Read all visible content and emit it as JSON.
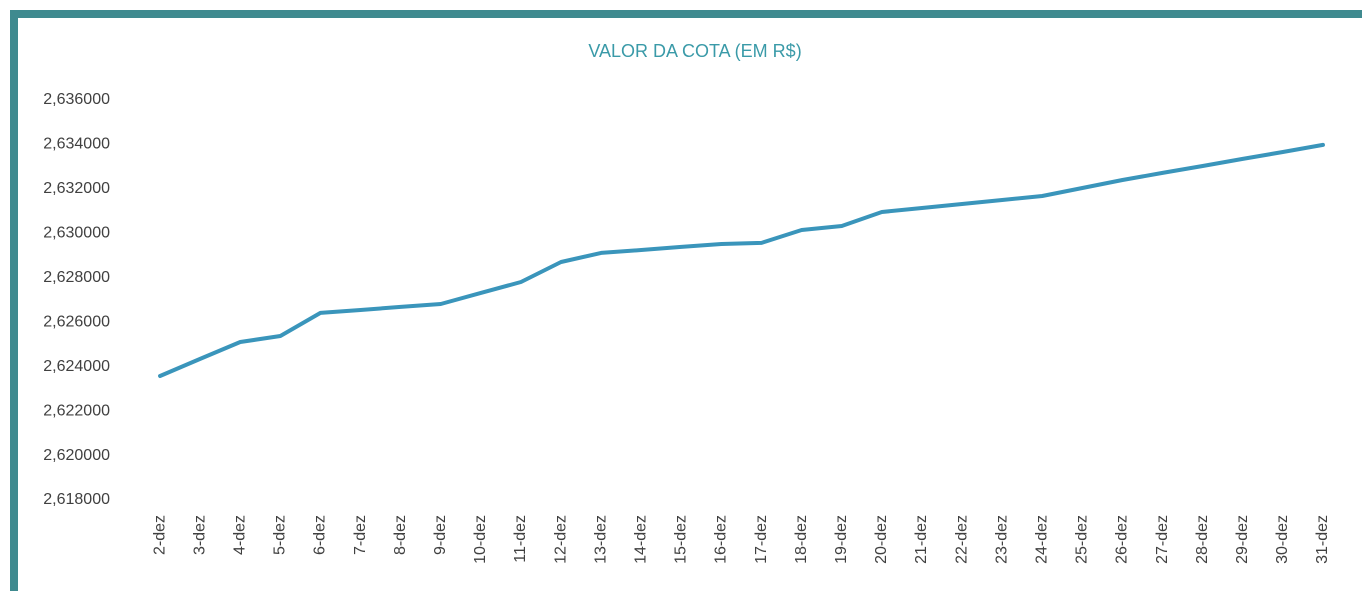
{
  "chart_data": {
    "type": "line",
    "title": "VALOR DA COTA (EM R$)",
    "categories": [
      "2-dez",
      "3-dez",
      "4-dez",
      "5-dez",
      "6-dez",
      "7-dez",
      "8-dez",
      "9-dez",
      "10-dez",
      "11-dez",
      "12-dez",
      "13-dez",
      "14-dez",
      "15-dez",
      "16-dez",
      "17-dez",
      "18-dez",
      "19-dez",
      "20-dez",
      "21-dez",
      "22-dez",
      "23-dez",
      "24-dez",
      "25-dez",
      "26-dez",
      "27-dez",
      "28-dez",
      "29-dez",
      "30-dez",
      "31-dez"
    ],
    "values": [
      2.62358,
      2.62435,
      2.62511,
      2.62538,
      2.62642,
      2.62655,
      2.62669,
      2.62682,
      2.62732,
      2.62781,
      2.62871,
      2.62912,
      2.62925,
      2.62939,
      2.62952,
      2.62957,
      2.63015,
      2.63033,
      2.63096,
      2.63114,
      2.63132,
      2.6315,
      2.63168,
      2.63204,
      2.6324,
      2.63272,
      2.63303,
      2.63335,
      2.63366,
      2.63398
    ],
    "color": "#3a95bb",
    "ylim": [
      2.618,
      2.636
    ],
    "yticks": [
      {
        "value": 2.618,
        "label": "2,618000"
      },
      {
        "value": 2.62,
        "label": "2,620000"
      },
      {
        "value": 2.622,
        "label": "2,622000"
      },
      {
        "value": 2.624,
        "label": "2,624000"
      },
      {
        "value": 2.626,
        "label": "2,626000"
      },
      {
        "value": 2.628,
        "label": "2,628000"
      },
      {
        "value": 2.63,
        "label": "2,630000"
      },
      {
        "value": 2.632,
        "label": "2,632000"
      },
      {
        "value": 2.634,
        "label": "2,634000"
      },
      {
        "value": 2.636,
        "label": "2,636000"
      }
    ],
    "grid": false
  }
}
